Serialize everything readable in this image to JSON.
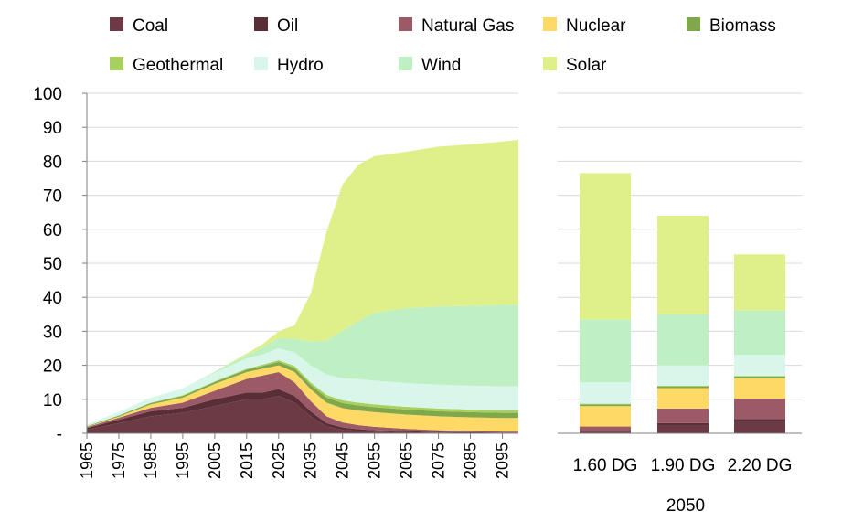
{
  "chart_data": [
    {
      "type": "area",
      "stacked": true,
      "title": "",
      "xlabel": "",
      "ylabel": "",
      "ylim": [
        0,
        100
      ],
      "y_ticks": [
        "-",
        "10",
        "20",
        "30",
        "40",
        "50",
        "60",
        "70",
        "80",
        "90",
        "100"
      ],
      "x_ticks": [
        "1965",
        "1975",
        "1985",
        "1995",
        "2005",
        "2015",
        "2025",
        "2035",
        "2045",
        "2055",
        "2065",
        "2075",
        "2085",
        "2095"
      ],
      "x": [
        1965,
        1975,
        1985,
        1995,
        2005,
        2015,
        2020,
        2025,
        2030,
        2035,
        2040,
        2045,
        2050,
        2055,
        2065,
        2075,
        2085,
        2095,
        2100
      ],
      "grid": "horizontal",
      "legend": "top",
      "series": [
        {
          "name": "Coal",
          "color": "#6b3a45",
          "values": [
            1,
            3,
            5,
            6,
            8,
            10,
            10,
            11,
            9,
            5,
            2,
            1,
            0.7,
            0.5,
            0.3,
            0.2,
            0.1,
            0.1,
            0.1
          ]
        },
        {
          "name": "Oil",
          "color": "#5a2e36",
          "values": [
            0.5,
            1,
            1.5,
            1.5,
            2,
            2,
            2,
            2,
            2,
            1.5,
            1,
            0.7,
            0.5,
            0.4,
            0.3,
            0.2,
            0.2,
            0.1,
            0.1
          ]
        },
        {
          "name": "Natural Gas",
          "color": "#9b5a66",
          "values": [
            0.3,
            0.6,
            1,
            1.5,
            2.5,
            4,
            5,
            5,
            4,
            3,
            2,
            1.5,
            1.2,
            1,
            0.7,
            0.5,
            0.4,
            0.3,
            0.3
          ]
        },
        {
          "name": "Nuclear",
          "color": "#ffd966",
          "values": [
            0.1,
            0.3,
            1,
            1.5,
            2,
            2,
            2,
            2,
            3,
            3.5,
            4,
            4.2,
            4.3,
            4.3,
            4.2,
            4.1,
            4,
            4,
            4
          ]
        },
        {
          "name": "Biomass",
          "color": "#7fa84a",
          "values": [
            0.2,
            0.3,
            0.4,
            0.5,
            0.6,
            0.7,
            0.8,
            1,
            1.2,
            1.3,
            1.5,
            1.5,
            1.5,
            1.5,
            1.5,
            1.5,
            1.5,
            1.5,
            1.5
          ]
        },
        {
          "name": "Geothermal",
          "color": "#a9cf5f",
          "values": [
            0,
            0.1,
            0.1,
            0.2,
            0.2,
            0.3,
            0.4,
            0.5,
            0.6,
            0.7,
            0.8,
            0.8,
            0.8,
            0.8,
            0.8,
            0.8,
            0.8,
            0.8,
            0.8
          ]
        },
        {
          "name": "Hydro",
          "color": "#d8f7ea",
          "values": [
            0.5,
            1,
            1.5,
            2,
            2.5,
            3,
            3,
            3.5,
            4,
            5,
            6,
            6.5,
            7,
            7,
            7,
            7,
            7,
            7,
            7
          ]
        },
        {
          "name": "Wind",
          "color": "#bff0c3",
          "values": [
            0,
            0,
            0,
            0,
            0.3,
            1,
            2,
            3,
            4,
            7,
            10,
            14,
            17,
            20,
            22,
            23,
            23.5,
            24,
            24
          ]
        },
        {
          "name": "Solar",
          "color": "#dff08a",
          "values": [
            0,
            0,
            0,
            0,
            0,
            0.5,
            1,
            2,
            4,
            14,
            32,
            43,
            46,
            46,
            46,
            47,
            47.5,
            48,
            48.5
          ]
        }
      ]
    },
    {
      "type": "bar",
      "stacked": true,
      "title": "",
      "xlabel": "2050",
      "ylabel": "",
      "ylim": [
        0,
        100
      ],
      "categories": [
        "1.60 DG",
        "1.90 DG",
        "2.20 DG"
      ],
      "series": [
        {
          "name": "Coal",
          "color": "#6b3a45",
          "values": [
            0.5,
            2.3,
            3.5
          ]
        },
        {
          "name": "Oil",
          "color": "#5a2e36",
          "values": [
            0.3,
            0.7,
            0.7
          ]
        },
        {
          "name": "Natural Gas",
          "color": "#9b5a66",
          "values": [
            1.2,
            4.3,
            6
          ]
        },
        {
          "name": "Nuclear",
          "color": "#ffd966",
          "values": [
            6,
            6,
            6
          ]
        },
        {
          "name": "Biomass",
          "color": "#7fa84a",
          "values": [
            0.5,
            0.5,
            0.5
          ]
        },
        {
          "name": "Geothermal",
          "color": "#a9cf5f",
          "values": [
            0.2,
            0.2,
            0.2
          ]
        },
        {
          "name": "Hydro",
          "color": "#d8f7ea",
          "values": [
            6.3,
            6,
            6.2
          ]
        },
        {
          "name": "Wind",
          "color": "#bff0c3",
          "values": [
            18.5,
            15,
            13
          ]
        },
        {
          "name": "Solar",
          "color": "#dff08a",
          "values": [
            43,
            29,
            16.5
          ]
        }
      ]
    }
  ]
}
